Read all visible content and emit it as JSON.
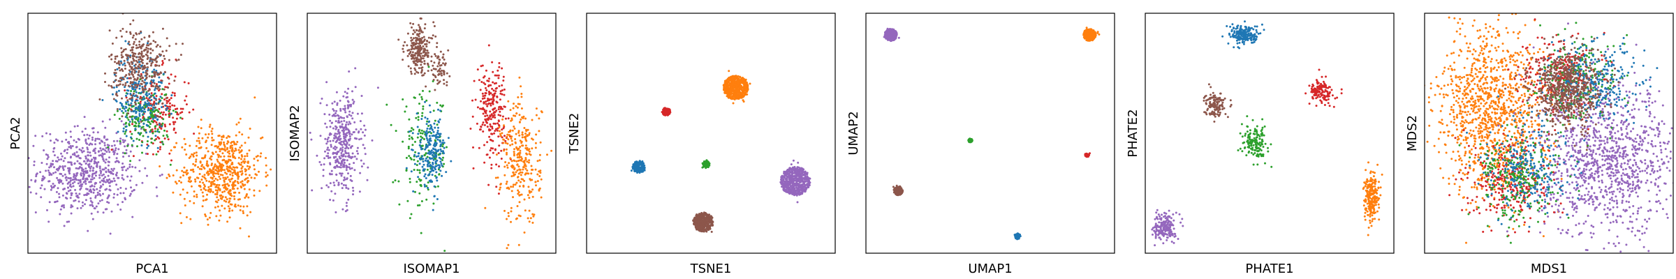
{
  "colors": {
    "blue": "#1f77b4",
    "orange": "#ff7f0e",
    "green": "#2ca02c",
    "red": "#d62728",
    "purple": "#9467bd",
    "brown": "#8c564b"
  },
  "chart_data": [
    {
      "type": "scatter",
      "xlabel": "PCA1",
      "ylabel": "PCA2",
      "xlim": [
        0,
        1
      ],
      "ylim": [
        0,
        1
      ],
      "grid": false,
      "ticks": false,
      "series": [
        {
          "color": "purple",
          "cx": 0.24,
          "cy": 0.34,
          "sx": 0.1,
          "sy": 0.09,
          "n": 650
        },
        {
          "color": "orange",
          "cx": 0.78,
          "cy": 0.34,
          "sx": 0.08,
          "sy": 0.09,
          "n": 600
        },
        {
          "color": "red",
          "cx": 0.53,
          "cy": 0.6,
          "sx": 0.06,
          "sy": 0.08,
          "n": 180
        },
        {
          "color": "green",
          "cx": 0.47,
          "cy": 0.57,
          "sx": 0.05,
          "sy": 0.07,
          "n": 180
        },
        {
          "color": "blue",
          "cx": 0.45,
          "cy": 0.66,
          "sx": 0.05,
          "sy": 0.09,
          "n": 250
        },
        {
          "color": "brown",
          "cx": 0.45,
          "cy": 0.78,
          "sx": 0.06,
          "sy": 0.08,
          "n": 350
        }
      ]
    },
    {
      "type": "scatter",
      "xlabel": "ISOMAP1",
      "ylabel": "ISOMAP2",
      "xlim": [
        0,
        1
      ],
      "ylim": [
        0,
        1
      ],
      "grid": false,
      "ticks": false,
      "series": [
        {
          "color": "purple",
          "cx": 0.14,
          "cy": 0.45,
          "sx": 0.04,
          "sy": 0.11,
          "n": 380
        },
        {
          "color": "brown",
          "cx": 0.45,
          "cy": 0.85,
          "sx": 0.03,
          "sy": 0.05,
          "n": 220
        },
        {
          "color": "brown",
          "cx": 0.53,
          "cy": 0.76,
          "sx": 0.02,
          "sy": 0.03,
          "n": 60
        },
        {
          "color": "green",
          "cx": 0.47,
          "cy": 0.42,
          "sx": 0.05,
          "sy": 0.12,
          "n": 170
        },
        {
          "color": "blue",
          "cx": 0.5,
          "cy": 0.42,
          "sx": 0.03,
          "sy": 0.07,
          "n": 220
        },
        {
          "color": "red",
          "cx": 0.74,
          "cy": 0.6,
          "sx": 0.03,
          "sy": 0.1,
          "n": 230
        },
        {
          "color": "orange",
          "cx": 0.86,
          "cy": 0.38,
          "sx": 0.04,
          "sy": 0.13,
          "n": 300
        }
      ]
    },
    {
      "type": "scatter",
      "xlabel": "TSNE1",
      "ylabel": "TSNE2",
      "xlim": [
        0,
        1
      ],
      "ylim": [
        0,
        1
      ],
      "grid": false,
      "ticks": false,
      "series": [
        {
          "color": "orange",
          "cx": 0.6,
          "cy": 0.69,
          "sx": 0.05,
          "sy": 0.05,
          "n": 550,
          "disk": true
        },
        {
          "color": "red",
          "cx": 0.32,
          "cy": 0.59,
          "sx": 0.017,
          "sy": 0.017,
          "n": 90,
          "disk": true
        },
        {
          "color": "blue",
          "cx": 0.21,
          "cy": 0.36,
          "sx": 0.025,
          "sy": 0.025,
          "n": 180,
          "disk": true
        },
        {
          "color": "green",
          "cx": 0.48,
          "cy": 0.37,
          "sx": 0.015,
          "sy": 0.015,
          "n": 70,
          "disk": true
        },
        {
          "color": "purple",
          "cx": 0.84,
          "cy": 0.3,
          "sx": 0.06,
          "sy": 0.06,
          "n": 600,
          "disk": true
        },
        {
          "color": "brown",
          "cx": 0.47,
          "cy": 0.13,
          "sx": 0.04,
          "sy": 0.04,
          "n": 380,
          "disk": true
        }
      ]
    },
    {
      "type": "scatter",
      "xlabel": "UMAP1",
      "ylabel": "UMAP2",
      "xlim": [
        0,
        1
      ],
      "ylim": [
        0,
        1
      ],
      "grid": false,
      "ticks": false,
      "series": [
        {
          "color": "purple",
          "cx": 0.1,
          "cy": 0.91,
          "sx": 0.025,
          "sy": 0.025,
          "n": 320,
          "disk": true
        },
        {
          "color": "orange",
          "cx": 0.9,
          "cy": 0.91,
          "sx": 0.025,
          "sy": 0.025,
          "n": 320,
          "disk": true
        },
        {
          "color": "green",
          "cx": 0.42,
          "cy": 0.47,
          "sx": 0.008,
          "sy": 0.008,
          "n": 40,
          "disk": true
        },
        {
          "color": "red",
          "cx": 0.89,
          "cy": 0.41,
          "sx": 0.009,
          "sy": 0.009,
          "n": 40,
          "disk": true
        },
        {
          "color": "brown",
          "cx": 0.13,
          "cy": 0.26,
          "sx": 0.018,
          "sy": 0.018,
          "n": 180,
          "disk": true
        },
        {
          "color": "blue",
          "cx": 0.61,
          "cy": 0.07,
          "sx": 0.012,
          "sy": 0.012,
          "n": 80,
          "disk": true
        }
      ]
    },
    {
      "type": "scatter",
      "xlabel": "PHATE1",
      "ylabel": "PHATE2",
      "xlim": [
        0,
        1
      ],
      "ylim": [
        0,
        1
      ],
      "grid": false,
      "ticks": false,
      "series": [
        {
          "color": "blue",
          "cx": 0.4,
          "cy": 0.91,
          "sx": 0.03,
          "sy": 0.02,
          "n": 200
        },
        {
          "color": "red",
          "cx": 0.71,
          "cy": 0.67,
          "sx": 0.025,
          "sy": 0.025,
          "n": 130
        },
        {
          "color": "brown",
          "cx": 0.28,
          "cy": 0.62,
          "sx": 0.02,
          "sy": 0.025,
          "n": 130
        },
        {
          "color": "green",
          "cx": 0.44,
          "cy": 0.46,
          "sx": 0.025,
          "sy": 0.035,
          "n": 150
        },
        {
          "color": "orange",
          "cx": 0.91,
          "cy": 0.23,
          "sx": 0.015,
          "sy": 0.05,
          "n": 220
        },
        {
          "color": "purple",
          "cx": 0.08,
          "cy": 0.11,
          "sx": 0.022,
          "sy": 0.03,
          "n": 180
        }
      ]
    },
    {
      "type": "scatter",
      "xlabel": "MDS1",
      "ylabel": "MDS2",
      "xlim": [
        0,
        1
      ],
      "ylim": [
        0,
        1
      ],
      "grid": false,
      "ticks": false,
      "series": [
        {
          "color": "orange",
          "cx": 0.27,
          "cy": 0.6,
          "sx": 0.11,
          "sy": 0.17,
          "n": 1100
        },
        {
          "color": "purple",
          "cx": 0.74,
          "cy": 0.38,
          "sx": 0.14,
          "sy": 0.15,
          "n": 1100
        },
        {
          "color": "red",
          "cx": 0.35,
          "cy": 0.3,
          "sx": 0.08,
          "sy": 0.09,
          "n": 300
        },
        {
          "color": "green",
          "cx": 0.38,
          "cy": 0.32,
          "sx": 0.08,
          "sy": 0.09,
          "n": 250
        },
        {
          "color": "blue",
          "cx": 0.42,
          "cy": 0.36,
          "sx": 0.08,
          "sy": 0.1,
          "n": 250
        },
        {
          "color": "red",
          "cx": 0.55,
          "cy": 0.74,
          "sx": 0.08,
          "sy": 0.08,
          "n": 260
        },
        {
          "color": "green",
          "cx": 0.62,
          "cy": 0.72,
          "sx": 0.08,
          "sy": 0.08,
          "n": 220
        },
        {
          "color": "blue",
          "cx": 0.68,
          "cy": 0.72,
          "sx": 0.09,
          "sy": 0.08,
          "n": 280
        },
        {
          "color": "brown",
          "cx": 0.57,
          "cy": 0.68,
          "sx": 0.07,
          "sy": 0.08,
          "n": 600
        }
      ]
    }
  ]
}
